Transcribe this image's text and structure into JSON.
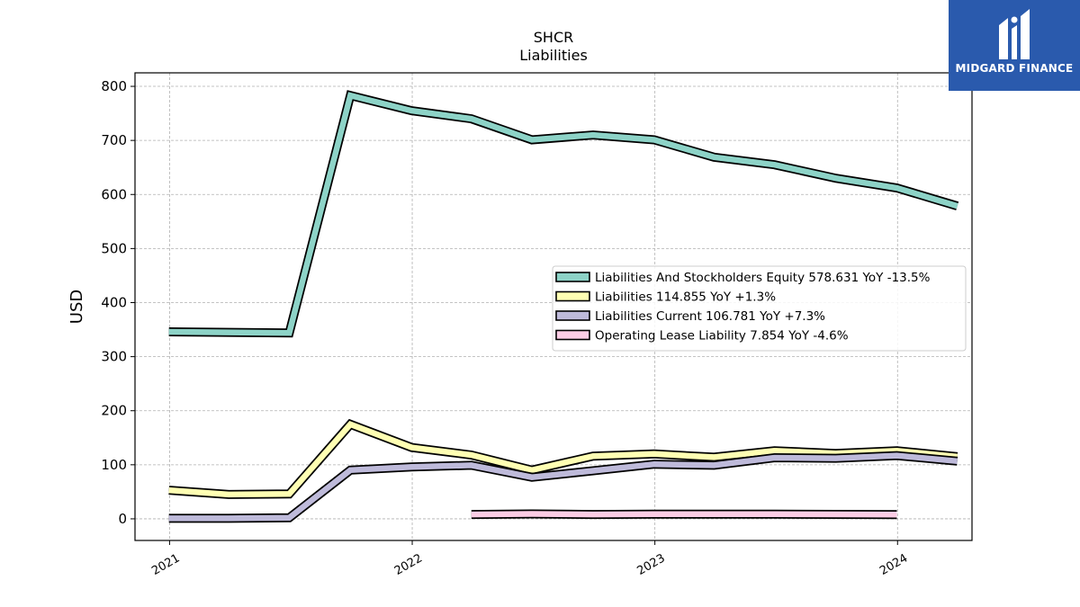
{
  "chart_data": {
    "type": "line",
    "title": "SHCR",
    "subtitle": "Liabilities",
    "ylabel": "USD",
    "xlabel": "",
    "ylim": [
      -40,
      825
    ],
    "yticks": [
      0,
      100,
      200,
      300,
      400,
      500,
      600,
      700,
      800
    ],
    "xlim": [
      "2020-11-10",
      "2024-04-22"
    ],
    "xticks": [
      {
        "date": "2021-01-01",
        "label": "2021"
      },
      {
        "date": "2022-01-01",
        "label": "2022"
      },
      {
        "date": "2023-01-01",
        "label": "2023"
      },
      {
        "date": "2024-01-01",
        "label": "2024"
      }
    ],
    "grid": true,
    "legend_position": "center-right",
    "series": [
      {
        "name": "Liabilities And Stockholders Equity",
        "legend": "Liabilities And Stockholders Equity  578.631 YoY -13.5%",
        "color": "#8dd3c7",
        "x": [
          "2020-12-31",
          "2021-03-31",
          "2021-06-30",
          "2021-09-30",
          "2021-12-31",
          "2022-03-31",
          "2022-06-30",
          "2022-09-30",
          "2022-12-31",
          "2023-03-31",
          "2023-06-30",
          "2023-09-30",
          "2023-12-31",
          "2024-03-31"
        ],
        "values": [
          346,
          345,
          344,
          783,
          755,
          740,
          701,
          710,
          701,
          669,
          655,
          630,
          612,
          578.631
        ]
      },
      {
        "name": "Liabilities",
        "legend": "Liabilities  114.855 YoY +1.3%",
        "color": "#ffffb3",
        "x": [
          "2020-12-31",
          "2021-03-31",
          "2021-06-30",
          "2021-09-30",
          "2021-12-31",
          "2022-03-31",
          "2022-06-30",
          "2022-09-30",
          "2022-12-31",
          "2023-03-31",
          "2023-06-30",
          "2023-09-30",
          "2023-12-31",
          "2024-03-31"
        ],
        "values": [
          53,
          45,
          46,
          175,
          132,
          118,
          90,
          116,
          120,
          114,
          126,
          121,
          126,
          114.855
        ]
      },
      {
        "name": "Liabilities Current",
        "legend": "Liabilities Current  106.781 YoY +7.3%",
        "color": "#bebada",
        "x": [
          "2020-12-31",
          "2021-03-31",
          "2021-06-30",
          "2021-09-30",
          "2021-12-31",
          "2022-03-31",
          "2022-06-30",
          "2022-09-30",
          "2022-12-31",
          "2023-03-31",
          "2023-06-30",
          "2023-09-30",
          "2023-12-31",
          "2024-03-31"
        ],
        "values": [
          1,
          1,
          2,
          90,
          96,
          99,
          77,
          89,
          101,
          99,
          113,
          112,
          117,
          106.781
        ]
      },
      {
        "name": "Operating Lease Liability",
        "legend": "Operating Lease Liability  7.854 YoY -4.6%",
        "color": "#fccde5",
        "x": [
          "2022-03-31",
          "2022-06-30",
          "2022-09-30",
          "2022-12-31",
          "2023-03-31",
          "2023-06-30",
          "2023-09-30",
          "2023-12-31"
        ],
        "values": [
          8,
          9,
          8,
          8.5,
          8.5,
          8.5,
          8.2,
          7.854
        ]
      }
    ]
  },
  "logo": {
    "text": "MIDGARD FINANCE",
    "background": "#2a5aad"
  }
}
